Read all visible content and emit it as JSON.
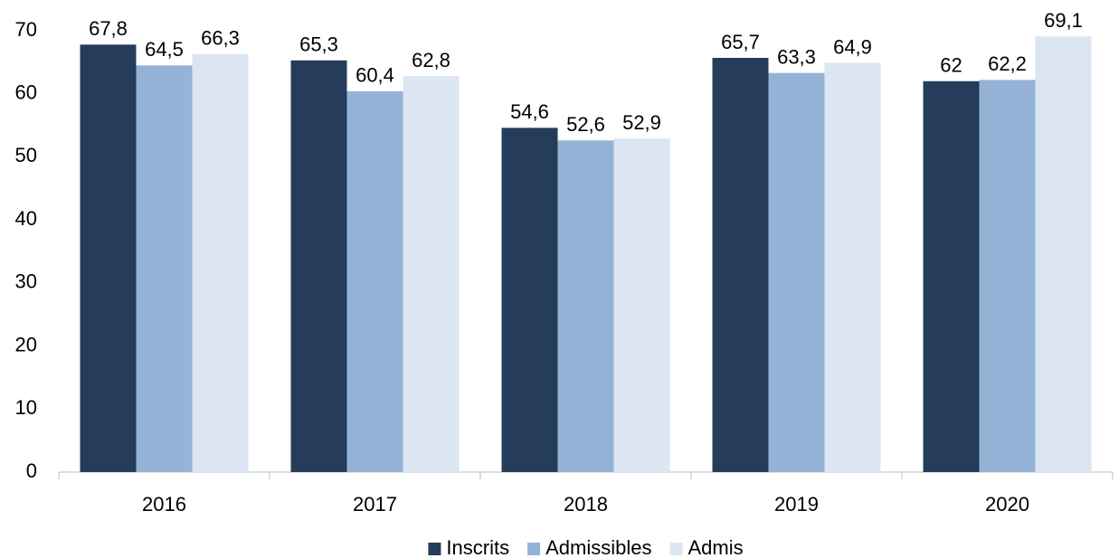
{
  "chart_data": {
    "type": "bar",
    "categories": [
      "2016",
      "2017",
      "2018",
      "2019",
      "2020"
    ],
    "series": [
      {
        "name": "Inscrits",
        "color": "#253d5b",
        "values": [
          67.8,
          65.3,
          54.6,
          65.7,
          62
        ],
        "value_labels": [
          "67,8",
          "65,3",
          "54,6",
          "65,7",
          "62"
        ]
      },
      {
        "name": "Admissibles",
        "color": "#95b3d7",
        "values": [
          64.5,
          60.4,
          52.6,
          63.3,
          62.2
        ],
        "value_labels": [
          "64,5",
          "60,4",
          "52,6",
          "63,3",
          "62,2"
        ]
      },
      {
        "name": "Admis",
        "color": "#dce6f2",
        "values": [
          66.3,
          62.8,
          52.9,
          64.9,
          69.1
        ],
        "value_labels": [
          "66,3",
          "62,8",
          "52,9",
          "64,9",
          "69,1"
        ]
      }
    ],
    "ylim": [
      0,
      70
    ],
    "yticks": [
      0,
      10,
      20,
      30,
      40,
      50,
      60,
      70
    ],
    "grid": false,
    "legend": "bottom"
  }
}
